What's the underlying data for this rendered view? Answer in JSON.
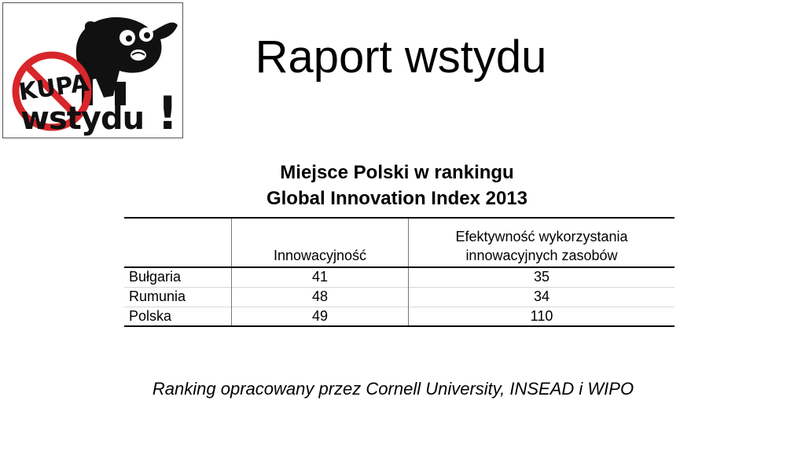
{
  "logo": {
    "line1": "KUPA",
    "line2": "wstydu",
    "mark": "!",
    "icon": "dog-over-prohibition-sign-icon",
    "colors": {
      "sign": "#d8262b",
      "ink": "#111111"
    }
  },
  "slide": {
    "title": "Raport wstydu"
  },
  "table": {
    "title_line1": "Miejsce Polski w rankingu",
    "title_line2": "Global Innovation Index 2013",
    "headers": {
      "col1": "",
      "col2": "Innowacyjność",
      "col3_line1": "Efektywność wykorzystania",
      "col3_line2": "innowacyjnych zasobów"
    },
    "rows": [
      {
        "country": "Bułgaria",
        "innovation": "41",
        "efficiency": "35"
      },
      {
        "country": "Rumunia",
        "innovation": "48",
        "efficiency": "34"
      },
      {
        "country": "Polska",
        "innovation": "49",
        "efficiency": "110"
      }
    ]
  },
  "footer": {
    "source": "Ranking opracowany przez Cornell University, INSEAD i WIPO"
  }
}
